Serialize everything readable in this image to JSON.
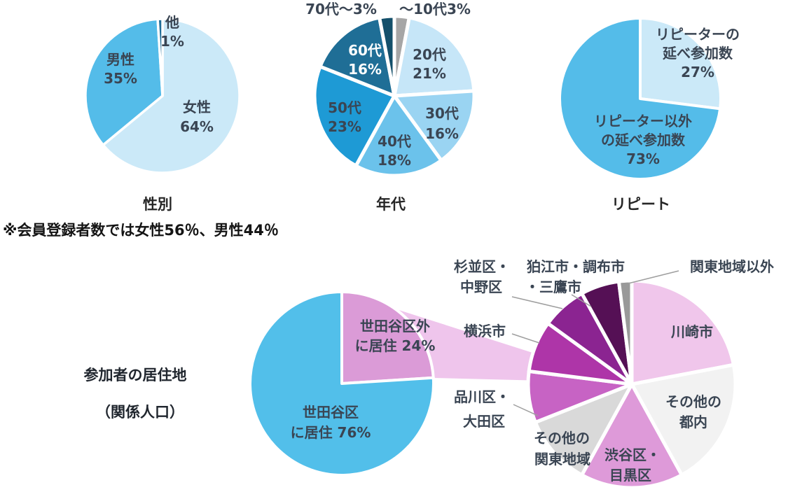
{
  "page": {
    "background": "#ffffff",
    "note": "※会員登録者数では女性56％、男性44％"
  },
  "chart_data": [
    {
      "type": "pie",
      "title": "性別",
      "legend_position": "inside",
      "slices": [
        {
          "label": "女性",
          "pct": "64%",
          "value": 64,
          "color": "#CBE9F8"
        },
        {
          "label": "男性",
          "pct": "35%",
          "value": 35,
          "color": "#54BCE9"
        },
        {
          "label": "他",
          "pct": "1%",
          "value": 1,
          "color": "#1E6E99"
        }
      ]
    },
    {
      "type": "pie",
      "title": "年代",
      "legend_position": "inside",
      "slices": [
        {
          "label": "～10代",
          "pct": "3%",
          "value": 3,
          "color": "#A6A6A6"
        },
        {
          "label": "20代",
          "pct": "21%",
          "value": 21,
          "color": "#C6E6F8"
        },
        {
          "label": "30代",
          "pct": "16%",
          "value": 16,
          "color": "#9AD4F2"
        },
        {
          "label": "40代",
          "pct": "18%",
          "value": 18,
          "color": "#6BC2EB"
        },
        {
          "label": "50代",
          "pct": "23%",
          "value": 23,
          "color": "#1E9AD5"
        },
        {
          "label": "60代",
          "pct": "16%",
          "value": 16,
          "color": "#1F6E96"
        },
        {
          "label": "70代～",
          "pct": "3%",
          "value": 3,
          "color": "#14506B"
        }
      ]
    },
    {
      "type": "pie",
      "title": "リピート",
      "legend_position": "inside",
      "slices": [
        {
          "label": "リピーターの延べ参加数",
          "lines": [
            "リピーターの",
            "延べ参加数"
          ],
          "pct": "27%",
          "value": 27,
          "color": "#CBE9F8"
        },
        {
          "label": "リピーター以外の延べ参加数",
          "lines": [
            "リピーター以外",
            "の延べ参加数"
          ],
          "pct": "73%",
          "value": 73,
          "color": "#54BCE9"
        }
      ]
    },
    {
      "type": "pie",
      "title": "参加者の居住地（関係人口）",
      "title_lines": [
        "参加者の居住地",
        "（関係人口）"
      ],
      "legend_position": "inside",
      "connector_color": "#EFC5EC",
      "slices": [
        {
          "label": "世田谷区外に居住",
          "lines": [
            "世田谷区外",
            "に居住  24%"
          ],
          "pct": "24%",
          "value": 24,
          "color": "#DB9BD7"
        },
        {
          "label": "世田谷区に居住",
          "lines": [
            "世田谷区",
            "に居住  76%"
          ],
          "pct": "76%",
          "value": 76,
          "color": "#52BFEA"
        }
      ]
    },
    {
      "type": "pie",
      "title": "",
      "legend_position": "outside",
      "slices": [
        {
          "label": "川崎市",
          "lines": [
            "川崎市"
          ],
          "value": 22,
          "color": "#F0C6EB"
        },
        {
          "label": "その他の都内",
          "lines": [
            "その他の",
            "都内"
          ],
          "value": 20,
          "color": "#F2F2F2"
        },
        {
          "label": "渋谷区・目黒区",
          "lines": [
            "渋谷区・",
            "目黒区"
          ],
          "value": 16,
          "color": "#DE9AD9"
        },
        {
          "label": "その他の関東地域",
          "lines": [
            "その他の",
            "関東地域"
          ],
          "value": 11,
          "color": "#D9D9D9"
        },
        {
          "label": "品川区・大田区",
          "lines": [
            "品川区・",
            "大田区"
          ],
          "value": 8,
          "color": "#C763C4"
        },
        {
          "label": "横浜市",
          "lines": [
            "横浜市"
          ],
          "value": 8,
          "color": "#AE35A8"
        },
        {
          "label": "杉並区・中野区",
          "lines": [
            "杉並区・",
            "中野区"
          ],
          "value": 7,
          "color": "#8B2491"
        },
        {
          "label": "狛江市・調布市・三鷹市",
          "lines": [
            "狛江市・調布市",
            "・三鷹市"
          ],
          "value": 6,
          "color": "#551055"
        },
        {
          "label": "関東地域以外",
          "lines": [
            "関東地域以外"
          ],
          "value": 2,
          "color": "#999999"
        }
      ]
    }
  ]
}
